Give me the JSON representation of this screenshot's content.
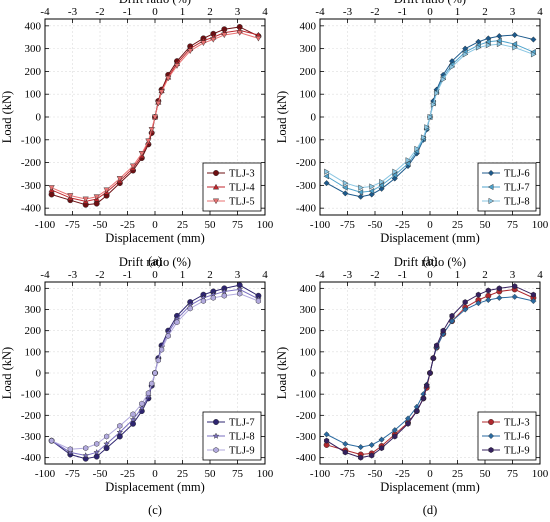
{
  "chart_data": [
    {
      "type": "line",
      "panel_label": "(a)",
      "xlabel": "Displacement (mm)",
      "ylabel": "Load (kN)",
      "x2label": "Drift ratio (%)",
      "xlim": [
        -100,
        100
      ],
      "ylim": [
        -430,
        430
      ],
      "x2lim": [
        -4,
        4
      ],
      "xticks": [
        -100,
        -75,
        -50,
        -25,
        0,
        25,
        50,
        75,
        100
      ],
      "yticks": [
        -400,
        -300,
        -200,
        -100,
        0,
        100,
        200,
        300,
        400
      ],
      "x2ticks": [
        -4,
        -3,
        -2,
        -1,
        0,
        1,
        2,
        3,
        4
      ],
      "legend_position": "bottom-right",
      "grid": true,
      "series": [
        {
          "name": "TLJ-3",
          "color": "#6e0f12",
          "marker": "circle",
          "x": [
            -94,
            -77,
            -63,
            -53,
            -44,
            -32,
            -20,
            -12,
            -6,
            -3,
            0,
            3,
            6,
            12,
            20,
            32,
            44,
            53,
            63,
            77,
            94
          ],
          "y": [
            -340,
            -365,
            -385,
            -380,
            -345,
            -290,
            -235,
            -180,
            -120,
            -70,
            0,
            70,
            120,
            185,
            245,
            310,
            345,
            365,
            385,
            395,
            355
          ]
        },
        {
          "name": "TLJ-4",
          "color": "#c0262c",
          "marker": "triangle-up",
          "x": [
            -94,
            -77,
            -63,
            -53,
            -44,
            -32,
            -20,
            -12,
            -6,
            -3,
            0,
            3,
            6,
            12,
            20,
            32,
            44,
            53,
            63,
            77,
            94
          ],
          "y": [
            -320,
            -355,
            -370,
            -360,
            -330,
            -280,
            -225,
            -170,
            -110,
            -60,
            0,
            65,
            115,
            175,
            235,
            300,
            335,
            350,
            370,
            380,
            360
          ]
        },
        {
          "name": "TLJ-5",
          "color": "#e87272",
          "marker": "triangle-down",
          "x": [
            -94,
            -77,
            -63,
            -53,
            -44,
            -32,
            -20,
            -12,
            -6,
            -3,
            0,
            3,
            6,
            12,
            20,
            32,
            44,
            53,
            63,
            77,
            94
          ],
          "y": [
            -310,
            -345,
            -360,
            -350,
            -320,
            -270,
            -215,
            -160,
            -105,
            -55,
            0,
            60,
            110,
            170,
            225,
            290,
            325,
            340,
            360,
            370,
            345
          ]
        }
      ]
    },
    {
      "type": "line",
      "panel_label": "(b)",
      "xlabel": "Displacement (mm)",
      "ylabel": "Load (kN)",
      "x2label": "Drift ratio (%)",
      "xlim": [
        -100,
        100
      ],
      "ylim": [
        -430,
        430
      ],
      "x2lim": [
        -4,
        4
      ],
      "xticks": [
        -100,
        -75,
        -50,
        -25,
        0,
        25,
        50,
        75,
        100
      ],
      "yticks": [
        -400,
        -300,
        -200,
        -100,
        0,
        100,
        200,
        300,
        400
      ],
      "x2ticks": [
        -4,
        -3,
        -2,
        -1,
        0,
        1,
        2,
        3,
        4
      ],
      "legend_position": "bottom-right",
      "grid": true,
      "series": [
        {
          "name": "TLJ-6",
          "color": "#1d5a8c",
          "marker": "diamond",
          "x": [
            -94,
            -77,
            -63,
            -53,
            -44,
            -32,
            -20,
            -12,
            -6,
            -3,
            0,
            3,
            6,
            12,
            20,
            32,
            44,
            53,
            63,
            77,
            94
          ],
          "y": [
            -290,
            -335,
            -350,
            -340,
            -315,
            -270,
            -215,
            -160,
            -100,
            -55,
            0,
            70,
            120,
            185,
            245,
            300,
            330,
            345,
            355,
            360,
            340
          ]
        },
        {
          "name": "TLJ-7",
          "color": "#4fa3cc",
          "marker": "triangle-left",
          "x": [
            -94,
            -77,
            -63,
            -53,
            -44,
            -32,
            -20,
            -12,
            -6,
            -3,
            0,
            3,
            6,
            12,
            20,
            32,
            44,
            53,
            63,
            77,
            94
          ],
          "y": [
            -260,
            -310,
            -330,
            -325,
            -300,
            -255,
            -205,
            -150,
            -95,
            -50,
            0,
            60,
            110,
            175,
            230,
            285,
            315,
            330,
            335,
            320,
            285
          ]
        },
        {
          "name": "TLJ-8",
          "color": "#8ac6e2",
          "marker": "triangle-right",
          "x": [
            -94,
            -77,
            -63,
            -53,
            -44,
            -32,
            -20,
            -12,
            -6,
            -3,
            0,
            3,
            6,
            12,
            20,
            32,
            44,
            53,
            63,
            77,
            94
          ],
          "y": [
            -240,
            -290,
            -310,
            -305,
            -285,
            -240,
            -190,
            -140,
            -90,
            -45,
            0,
            55,
            105,
            165,
            220,
            275,
            305,
            315,
            320,
            305,
            275
          ]
        }
      ]
    },
    {
      "type": "line",
      "panel_label": "(c)",
      "xlabel": "Displacement (mm)",
      "ylabel": "Load (kN)",
      "x2label": "Drift ratio (%)",
      "xlim": [
        -100,
        100
      ],
      "ylim": [
        -430,
        430
      ],
      "x2lim": [
        -4,
        4
      ],
      "xticks": [
        -100,
        -75,
        -50,
        -25,
        0,
        25,
        50,
        75,
        100
      ],
      "yticks": [
        -400,
        -300,
        -200,
        -100,
        0,
        100,
        200,
        300,
        400
      ],
      "x2ticks": [
        -4,
        -3,
        -2,
        -1,
        0,
        1,
        2,
        3,
        4
      ],
      "legend_position": "bottom-right",
      "grid": true,
      "series": [
        {
          "name": "TLJ-7",
          "color": "#2e2570",
          "marker": "circle",
          "x": [
            -94,
            -77,
            -63,
            -53,
            -44,
            -32,
            -20,
            -12,
            -6,
            -3,
            0,
            3,
            6,
            12,
            20,
            32,
            44,
            53,
            63,
            77,
            94
          ],
          "y": [
            -320,
            -385,
            -405,
            -395,
            -355,
            -300,
            -240,
            -180,
            -120,
            -60,
            0,
            70,
            130,
            200,
            270,
            335,
            370,
            385,
            400,
            415,
            365
          ]
        },
        {
          "name": "TLJ-8",
          "color": "#7a6fc0",
          "marker": "star",
          "x": [
            -94,
            -77,
            -63,
            -53,
            -44,
            -32,
            -20,
            -12,
            -6,
            -3,
            0,
            3,
            6,
            12,
            20,
            32,
            44,
            53,
            63,
            77,
            94
          ],
          "y": [
            -320,
            -375,
            -390,
            -375,
            -335,
            -280,
            -220,
            -165,
            -110,
            -55,
            0,
            65,
            120,
            190,
            255,
            320,
            355,
            370,
            385,
            395,
            350
          ]
        },
        {
          "name": "TLJ-9",
          "color": "#b2aade",
          "marker": "hexagon",
          "x": [
            -94,
            -77,
            -63,
            -53,
            -44,
            -32,
            -20,
            -12,
            -6,
            -3,
            0,
            3,
            6,
            12,
            20,
            32,
            44,
            53,
            63,
            77,
            94
          ],
          "y": [
            -320,
            -360,
            -355,
            -335,
            -300,
            -250,
            -195,
            -145,
            -95,
            -50,
            0,
            60,
            110,
            175,
            240,
            305,
            340,
            355,
            365,
            375,
            340
          ]
        }
      ]
    },
    {
      "type": "line",
      "panel_label": "(d)",
      "xlabel": "Displacement (mm)",
      "ylabel": "Load (kN)",
      "x2label": "Drift ratio (%)",
      "xlim": [
        -100,
        100
      ],
      "ylim": [
        -430,
        430
      ],
      "x2lim": [
        -4,
        4
      ],
      "xticks": [
        -100,
        -75,
        -50,
        -25,
        0,
        25,
        50,
        75,
        100
      ],
      "yticks": [
        -400,
        -300,
        -200,
        -100,
        0,
        100,
        200,
        300,
        400
      ],
      "x2ticks": [
        -4,
        -3,
        -2,
        -1,
        0,
        1,
        2,
        3,
        4
      ],
      "legend_position": "bottom-right",
      "grid": true,
      "series": [
        {
          "name": "TLJ-3",
          "color": "#b0282e",
          "marker": "circle",
          "x": [
            -94,
            -77,
            -63,
            -53,
            -44,
            -32,
            -20,
            -12,
            -6,
            -3,
            0,
            3,
            6,
            12,
            20,
            32,
            44,
            53,
            63,
            77,
            94
          ],
          "y": [
            -340,
            -365,
            -385,
            -380,
            -345,
            -290,
            -235,
            -180,
            -120,
            -70,
            0,
            70,
            120,
            185,
            245,
            310,
            345,
            365,
            385,
            395,
            355
          ]
        },
        {
          "name": "TLJ-6",
          "color": "#2a6aa0",
          "marker": "diamond",
          "x": [
            -94,
            -77,
            -63,
            -53,
            -44,
            -32,
            -20,
            -12,
            -6,
            -3,
            0,
            3,
            6,
            12,
            20,
            32,
            44,
            53,
            63,
            77,
            94
          ],
          "y": [
            -290,
            -335,
            -350,
            -340,
            -315,
            -270,
            -215,
            -160,
            -100,
            -55,
            0,
            70,
            120,
            185,
            245,
            300,
            330,
            345,
            355,
            360,
            340
          ]
        },
        {
          "name": "TLJ-9",
          "color": "#35205e",
          "marker": "hexagon",
          "x": [
            -94,
            -77,
            -63,
            -53,
            -44,
            -32,
            -20,
            -12,
            -6,
            -3,
            0,
            3,
            6,
            12,
            20,
            32,
            44,
            53,
            63,
            77,
            94
          ],
          "y": [
            -320,
            -375,
            -400,
            -390,
            -355,
            -300,
            -240,
            -180,
            -120,
            -60,
            0,
            70,
            130,
            200,
            270,
            335,
            370,
            390,
            400,
            410,
            370
          ]
        }
      ]
    }
  ]
}
